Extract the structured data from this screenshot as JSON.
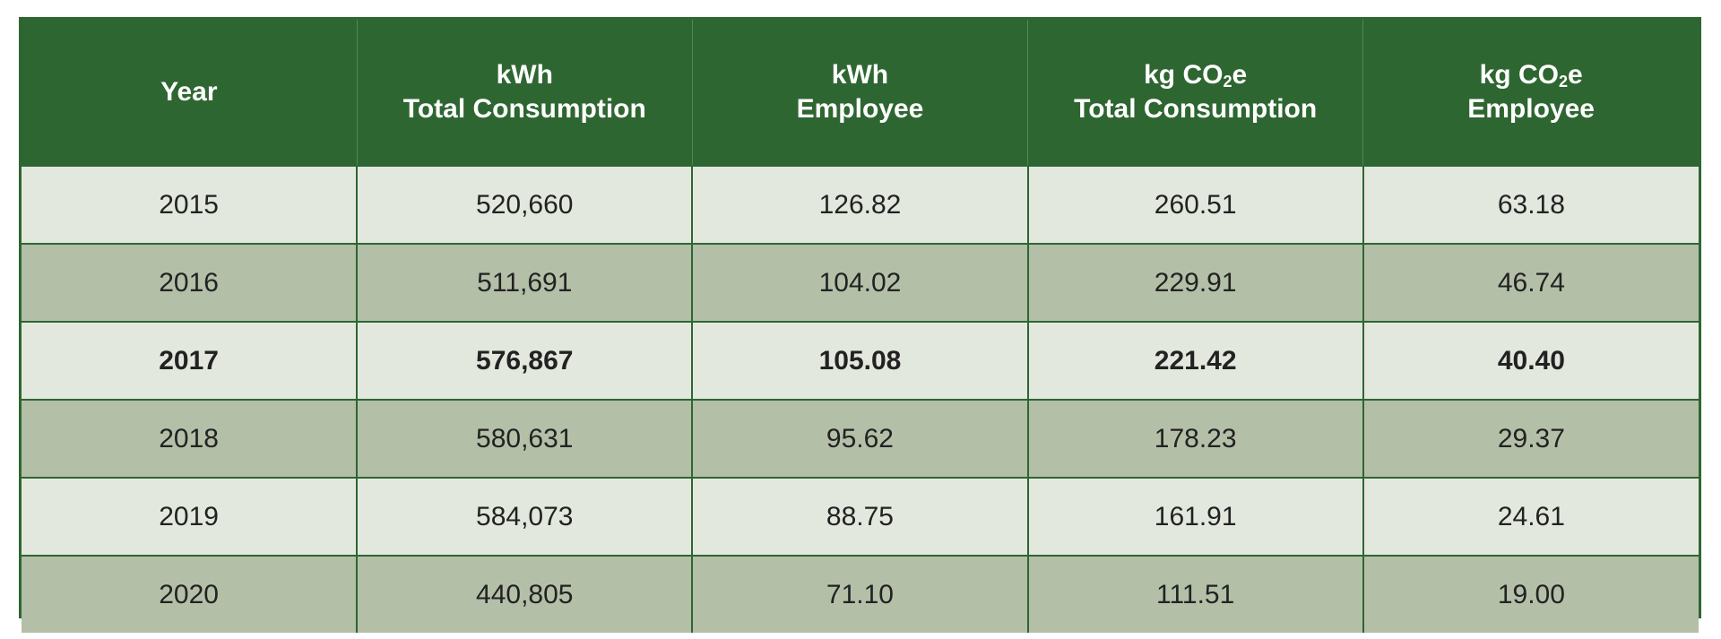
{
  "table": {
    "headers": [
      {
        "line1": "Year",
        "line2": ""
      },
      {
        "line1": "kWh",
        "line2": "Total Consumption"
      },
      {
        "line1": "kWh",
        "line2": "Employee"
      },
      {
        "line1_pre": "kg CO",
        "line1_sub": "2",
        "line1_post": "e",
        "line2": "Total Consumption"
      },
      {
        "line1_pre": "kg CO",
        "line1_sub": "2",
        "line1_post": "e",
        "line2": "Employee"
      }
    ],
    "rows": [
      [
        "2015",
        "520,660",
        "126.82",
        "260.51",
        "63.18"
      ],
      [
        "2016",
        "511,691",
        "104.02",
        "229.91",
        "46.74"
      ],
      [
        "2017",
        "576,867",
        "105.08",
        "221.42",
        "40.40"
      ],
      [
        "2018",
        "580,631",
        "95.62",
        "178.23",
        "29.37"
      ],
      [
        "2019",
        "584,073",
        "88.75",
        "161.91",
        "24.61"
      ],
      [
        "2020",
        "440,805",
        "71.10",
        "111.51",
        "19.00"
      ]
    ],
    "highlighted_row": "2017"
  },
  "colors": {
    "header_bg": "#2e6631",
    "header_text": "#ffffff",
    "row_light": "#e3e8de",
    "row_dark": "#b4bfa8",
    "grid_line": "#2e6631",
    "body_text": "#222222"
  }
}
